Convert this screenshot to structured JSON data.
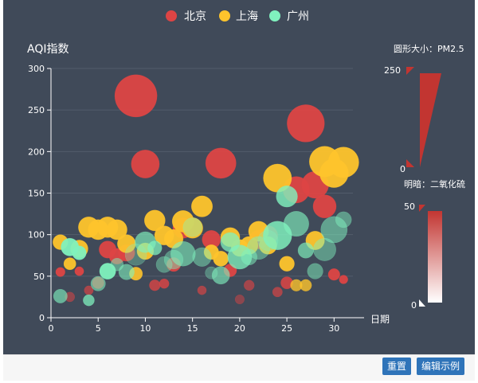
{
  "chart_data": {
    "type": "scatter",
    "title": "AQI指数",
    "xlabel": "日期",
    "ylabel": "AQI指数",
    "xlim": [
      0,
      32
    ],
    "ylim": [
      0,
      300
    ],
    "x_ticks": [
      0,
      5,
      10,
      15,
      20,
      25,
      30
    ],
    "y_ticks": [
      0,
      50,
      100,
      150,
      200,
      250,
      300
    ],
    "legend": [
      "北京",
      "上海",
      "广州"
    ],
    "legend_position": "top-center",
    "size_dimension": "PM2.5",
    "size_label": "圆形大小：PM2.5",
    "size_range": [
      0,
      250
    ],
    "opacity_dimension": "二氧化硫",
    "opacity_label": "明暗：二氧化硫",
    "opacity_range": [
      0,
      50
    ],
    "series": [
      {
        "name": "北京",
        "color": "#dd4444",
        "points": [
          [
            1,
            55,
            9,
            56
          ],
          [
            2,
            25,
            11,
            21
          ],
          [
            3,
            56,
            7,
            63
          ],
          [
            4,
            33,
            7,
            29
          ],
          [
            5,
            42,
            24,
            44
          ],
          [
            6,
            82,
            58,
            90
          ],
          [
            7,
            74,
            49,
            77
          ],
          [
            8,
            78,
            55,
            80
          ],
          [
            9,
            267,
            216,
            280
          ],
          [
            10,
            185,
            127,
            216
          ],
          [
            11,
            39,
            19,
            38
          ],
          [
            12,
            41,
            11,
            40
          ],
          [
            13,
            64,
            38,
            74
          ],
          [
            14,
            108,
            79,
            120
          ],
          [
            15,
            108,
            63,
            116
          ],
          [
            16,
            33,
            6,
            29
          ],
          [
            17,
            94,
            66,
            110
          ],
          [
            18,
            186,
            142,
            201
          ],
          [
            19,
            57,
            31,
            54
          ],
          [
            20,
            22,
            8,
            17
          ],
          [
            21,
            39,
            15,
            27
          ],
          [
            22,
            94,
            69,
            114
          ],
          [
            23,
            99,
            73,
            110
          ],
          [
            24,
            31,
            12,
            30
          ],
          [
            25,
            42,
            27,
            43
          ],
          [
            26,
            154,
            117,
            157
          ],
          [
            27,
            234,
            185,
            230
          ],
          [
            28,
            160,
            120,
            186
          ],
          [
            29,
            134,
            96,
            165
          ],
          [
            30,
            52,
            24,
            60
          ],
          [
            31,
            46,
            5,
            49
          ]
        ]
      },
      {
        "name": "上海",
        "color": "#fec42c",
        "points": [
          [
            1,
            91,
            45,
            125
          ],
          [
            2,
            65,
            27,
            78
          ],
          [
            3,
            83,
            60,
            84
          ],
          [
            4,
            109,
            81,
            121
          ],
          [
            5,
            106,
            77,
            114
          ],
          [
            6,
            109,
            81,
            121
          ],
          [
            7,
            106,
            77,
            114
          ],
          [
            8,
            89,
            65,
            78
          ],
          [
            9,
            53,
            33,
            47
          ],
          [
            10,
            80,
            55,
            80
          ],
          [
            11,
            117,
            81,
            124
          ],
          [
            12,
            99,
            71,
            142
          ],
          [
            13,
            95,
            69,
            130
          ],
          [
            14,
            116,
            87,
            131
          ],
          [
            15,
            108,
            80,
            121
          ],
          [
            16,
            134,
            83,
            167
          ],
          [
            17,
            79,
            43,
            107
          ],
          [
            18,
            71,
            46,
            89
          ],
          [
            19,
            97,
            71,
            113
          ],
          [
            20,
            84,
            57,
            91
          ],
          [
            21,
            87,
            63,
            101
          ],
          [
            22,
            104,
            77,
            119
          ],
          [
            23,
            87,
            62,
            100
          ],
          [
            24,
            168,
            128,
            172
          ],
          [
            25,
            65,
            45,
            51
          ],
          [
            26,
            39,
            24,
            38
          ],
          [
            27,
            39,
            24,
            39
          ],
          [
            28,
            93,
            68,
            96
          ],
          [
            29,
            188,
            143,
            197
          ],
          [
            30,
            174,
            131,
            174
          ],
          [
            31,
            187,
            143,
            201
          ]
        ]
      },
      {
        "name": "广州",
        "color": "#80f1be",
        "points": [
          [
            1,
            26,
            37,
            27
          ],
          [
            2,
            85,
            62,
            71
          ],
          [
            3,
            78,
            38,
            74
          ],
          [
            4,
            21,
            21,
            35
          ],
          [
            5,
            41,
            42,
            24
          ],
          [
            6,
            56,
            52,
            54
          ],
          [
            7,
            64,
            30,
            18
          ],
          [
            8,
            55,
            48,
            25
          ],
          [
            9,
            76,
            85,
            6
          ],
          [
            10,
            91,
            81,
            29
          ],
          [
            11,
            84,
            39,
            36
          ],
          [
            12,
            64,
            51,
            12
          ],
          [
            13,
            70,
            69,
            13
          ],
          [
            14,
            77,
            105,
            25
          ],
          [
            15,
            109,
            68,
            9
          ],
          [
            16,
            73,
            68,
            16
          ],
          [
            17,
            54,
            27,
            8
          ],
          [
            18,
            51,
            61,
            27
          ],
          [
            19,
            91,
            71,
            35
          ],
          [
            20,
            73,
            102,
            37
          ],
          [
            21,
            73,
            50,
            19
          ],
          [
            22,
            84,
            94,
            16
          ],
          [
            23,
            93,
            77,
            6
          ],
          [
            24,
            99,
            130,
            42
          ],
          [
            25,
            146,
            84,
            40
          ],
          [
            26,
            113,
            108,
            28
          ],
          [
            27,
            81,
            48,
            30
          ],
          [
            28,
            56,
            48,
            18
          ],
          [
            29,
            82,
            92,
            16
          ],
          [
            30,
            106,
            116,
            20
          ],
          [
            31,
            118,
            50,
            17
          ]
        ]
      }
    ]
  },
  "footer": {
    "reset_label": "重置",
    "edit_label": "编辑示例"
  }
}
